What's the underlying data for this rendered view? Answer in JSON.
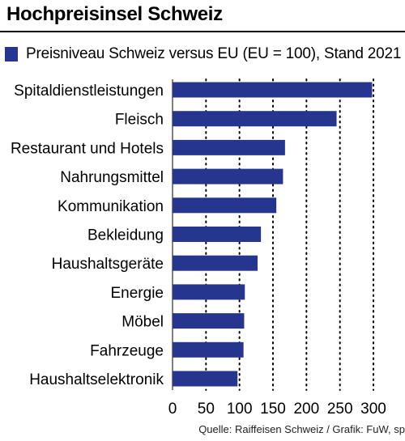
{
  "header": {
    "title": "Hochpreisinsel Schweiz"
  },
  "legend": {
    "label": "Preisniveau Schweiz versus EU (EU = 100), Stand 2021"
  },
  "colors": {
    "bar": "#26368f",
    "text": "#000000"
  },
  "chart_data": {
    "type": "bar",
    "orientation": "horizontal",
    "title": "Hochpreisinsel Schweiz",
    "subtitle": "Preisniveau Schweiz versus EU (EU = 100), Stand 2021",
    "categories": [
      "Spitaldienstleistungen",
      "Fleisch",
      "Restaurant und Hotels",
      "Nahrungsmittel",
      "Kommunikation",
      "Bekleidung",
      "Haushaltsgeräte",
      "Energie",
      "Möbel",
      "Fahrzeuge",
      "Haushaltselektronik"
    ],
    "values": [
      298,
      245,
      168,
      165,
      155,
      132,
      127,
      108,
      107,
      106,
      97
    ],
    "xlim": [
      0,
      300
    ],
    "xticks": [
      0,
      50,
      100,
      150,
      200,
      250,
      300
    ],
    "grid": "dotted-vertical",
    "legend_position": "top"
  },
  "source": "Quelle: Raiffeisen Schweiz / Grafik: FuW, sp"
}
